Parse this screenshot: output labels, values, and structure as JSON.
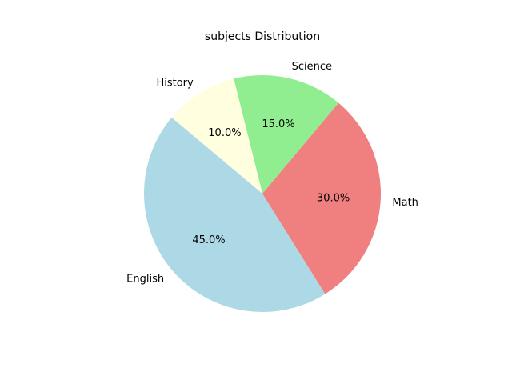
{
  "chart_data": {
    "type": "pie",
    "title": "subjects Distribution",
    "start_angle_deg": 140,
    "direction": "counterclockwise",
    "slices": [
      {
        "label": "English",
        "value": 45.0,
        "percent_label": "45.0%",
        "color": "#add8e6"
      },
      {
        "label": "Math",
        "value": 30.0,
        "percent_label": "30.0%",
        "color": "#f08080"
      },
      {
        "label": "Science",
        "value": 15.0,
        "percent_label": "15.0%",
        "color": "#90ee90"
      },
      {
        "label": "History",
        "value": 10.0,
        "percent_label": "10.0%",
        "color": "#ffffe0"
      }
    ]
  }
}
